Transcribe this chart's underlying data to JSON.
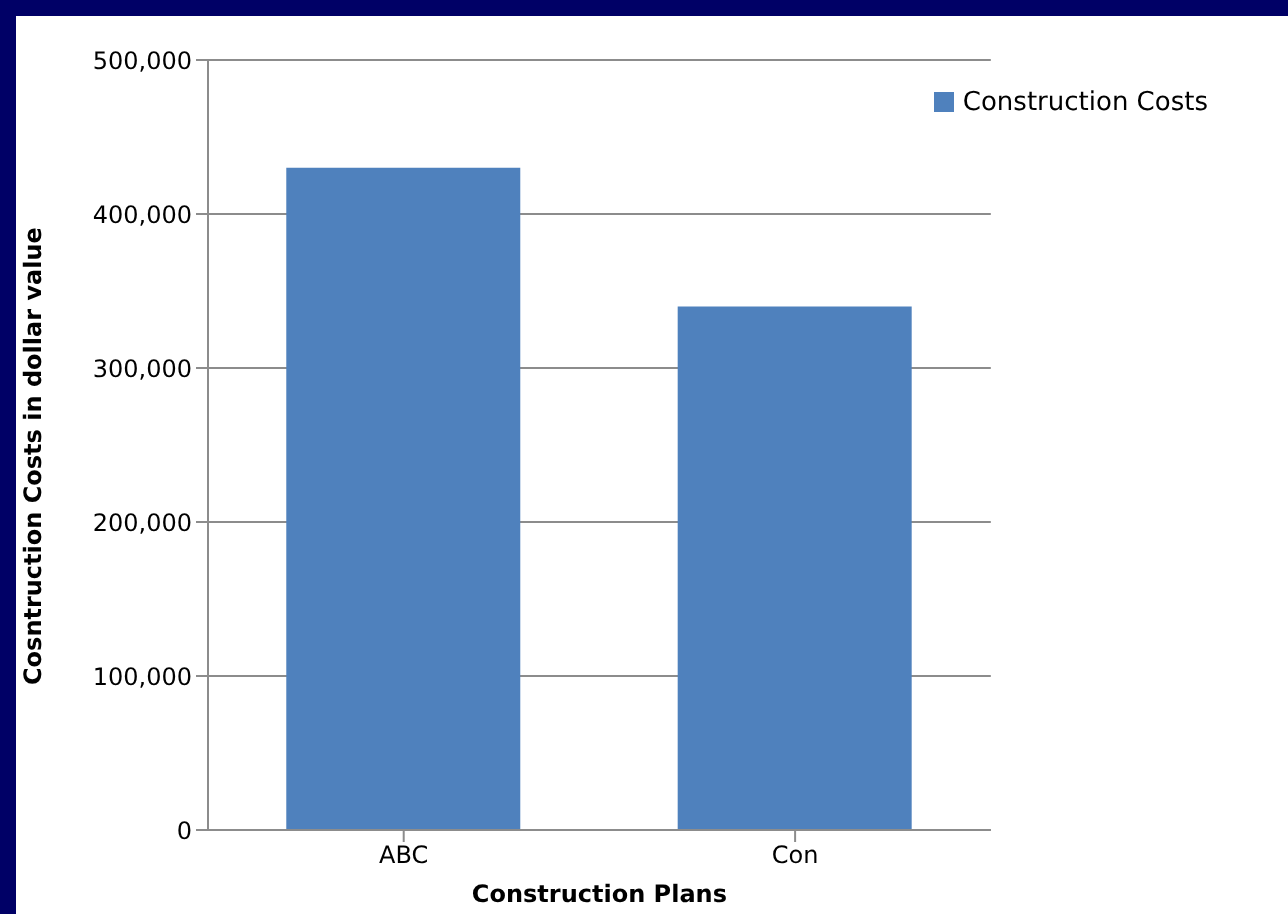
{
  "chart_data": {
    "type": "bar",
    "xlabel": "Construction Plans",
    "ylabel": "Cosntruction Costs in dollar value",
    "categories": [
      "ABC",
      "Con"
    ],
    "series": [
      {
        "name": "Construction Costs",
        "color": "#4f81bd",
        "values": [
          430000,
          340000
        ]
      }
    ],
    "ylim": [
      0,
      500000
    ],
    "yticks": [
      0,
      {
        "value": 100000,
        "label": "100,000"
      },
      {
        "value": 200000,
        "label": "200,000"
      },
      {
        "value": 300000,
        "label": "300,000"
      },
      {
        "value": 400000,
        "label": "400,000"
      },
      {
        "value": 500000,
        "label": "500,000"
      }
    ],
    "grid": "y",
    "legend": "top right"
  }
}
